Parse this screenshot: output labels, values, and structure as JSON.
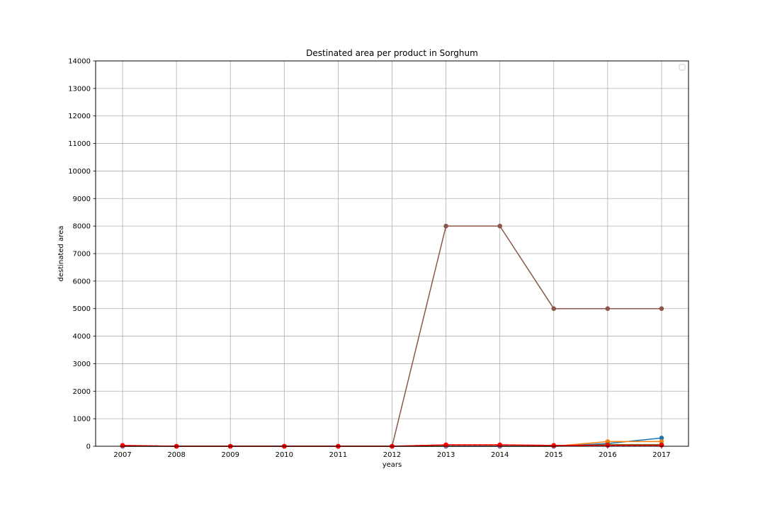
{
  "chart_data": {
    "type": "line",
    "title": "Destinated area per product in Sorghum",
    "xlabel": "years",
    "ylabel": "destinated area",
    "x": [
      2007,
      2008,
      2009,
      2010,
      2011,
      2012,
      2013,
      2014,
      2015,
      2016,
      2017
    ],
    "xlim": [
      2006.5,
      2017.5
    ],
    "ylim": [
      0,
      14000
    ],
    "yticks": [
      0,
      1000,
      2000,
      3000,
      4000,
      5000,
      6000,
      7000,
      8000,
      9000,
      10000,
      11000,
      12000,
      13000,
      14000
    ],
    "grid": true,
    "legend": "top-right (empty)",
    "series": [
      {
        "color": "#8c564b",
        "style": "solid",
        "marker": "circle",
        "values": [
          0,
          0,
          0,
          0,
          0,
          0,
          8000,
          8000,
          5000,
          5000,
          5000
        ]
      },
      {
        "color": "#1f77b4",
        "style": "solid",
        "marker": "circle",
        "values": [
          0,
          0,
          0,
          0,
          0,
          0,
          0,
          0,
          0,
          100,
          300
        ]
      },
      {
        "color": "#ff7f0e",
        "style": "solid",
        "marker": "circle",
        "values": [
          0,
          0,
          0,
          0,
          0,
          0,
          0,
          0,
          0,
          170,
          170
        ]
      },
      {
        "color": "#2ca02c",
        "style": "solid",
        "marker": "circle",
        "values": [
          0,
          0,
          0,
          0,
          0,
          0,
          0,
          0,
          0,
          60,
          60
        ]
      },
      {
        "color": "#9467bd",
        "style": "dashed",
        "marker": "circle",
        "values": [
          0,
          0,
          0,
          0,
          0,
          0,
          0,
          0,
          0,
          30,
          40
        ]
      },
      {
        "color": "#d62728",
        "style": "dashed",
        "marker": "circle",
        "values": [
          30,
          0,
          0,
          0,
          0,
          0,
          50,
          50,
          30,
          40,
          40
        ]
      },
      {
        "color": "#ff0000",
        "style": "solid",
        "marker": "circle",
        "values": [
          30,
          0,
          0,
          0,
          0,
          0,
          50,
          50,
          30,
          40,
          40
        ]
      }
    ]
  }
}
